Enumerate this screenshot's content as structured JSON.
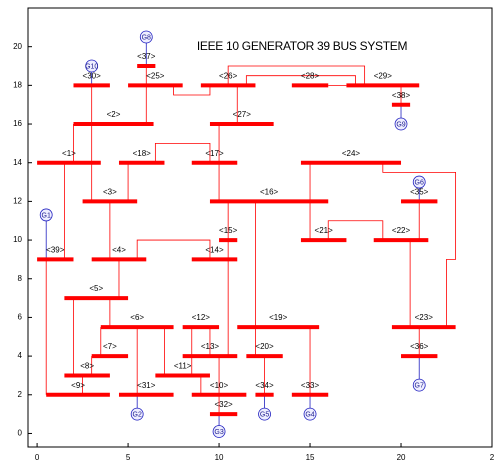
{
  "chart_data": {
    "type": "network",
    "title": "IEEE 10 GENERATOR 39 BUS SYSTEM",
    "xlim": [
      -0.5,
      25
    ],
    "ylim": [
      -0.7,
      22
    ],
    "xticks": [
      0,
      5,
      10,
      15,
      20,
      {
        "value": 25,
        "label": "2"
      }
    ],
    "yticks": [
      0,
      2,
      4,
      6,
      8,
      10,
      12,
      14,
      16,
      18,
      20
    ],
    "bus_color": "#ff0000",
    "line_color": "#ff0000",
    "gen_color": "#2020c0",
    "buses": [
      {
        "name": "<1>",
        "x": [
          0,
          3.5
        ],
        "y": 14
      },
      {
        "name": "<2>",
        "x": [
          2,
          6.4
        ],
        "y": 16
      },
      {
        "name": "<3>",
        "x": [
          2.5,
          5.5
        ],
        "y": 12
      },
      {
        "name": "<4>",
        "x": [
          3,
          6
        ],
        "y": 9
      },
      {
        "name": "<5>",
        "x": [
          1.5,
          5
        ],
        "y": 7
      },
      {
        "name": "<6>",
        "x": [
          3.5,
          7.5
        ],
        "y": 5.5
      },
      {
        "name": "<7>",
        "x": [
          3,
          5
        ],
        "y": 4
      },
      {
        "name": "<8>",
        "x": [
          1.5,
          4
        ],
        "y": 3
      },
      {
        "name": "<9>",
        "x": [
          0.5,
          4
        ],
        "y": 2
      },
      {
        "name": "<10>",
        "x": [
          8.5,
          11.5
        ],
        "y": 2
      },
      {
        "name": "<11>",
        "x": [
          6.5,
          9.5
        ],
        "y": 3
      },
      {
        "name": "<12>",
        "x": [
          8,
          10
        ],
        "y": 5.5
      },
      {
        "name": "<13>",
        "x": [
          8,
          11
        ],
        "y": 4
      },
      {
        "name": "<14>",
        "x": [
          8.5,
          11
        ],
        "y": 9
      },
      {
        "name": "<15>",
        "x": [
          10,
          11
        ],
        "y": 10
      },
      {
        "name": "<16>",
        "x": [
          9.5,
          16
        ],
        "y": 12
      },
      {
        "name": "<17>",
        "x": [
          8.5,
          11
        ],
        "y": 14
      },
      {
        "name": "<18>",
        "x": [
          4.5,
          7
        ],
        "y": 14
      },
      {
        "name": "<19>",
        "x": [
          11,
          15.5
        ],
        "y": 5.5
      },
      {
        "name": "<20>",
        "x": [
          11.5,
          13.5
        ],
        "y": 4
      },
      {
        "name": "<21>",
        "x": [
          14.5,
          17
        ],
        "y": 10
      },
      {
        "name": "<22>",
        "x": [
          18.5,
          21.5
        ],
        "y": 10
      },
      {
        "name": "<23>",
        "x": [
          19.5,
          23
        ],
        "y": 5.5
      },
      {
        "name": "<24>",
        "x": [
          14.5,
          20
        ],
        "y": 14
      },
      {
        "name": "<25>",
        "x": [
          5,
          8
        ],
        "y": 18
      },
      {
        "name": "<26>",
        "x": [
          9,
          12
        ],
        "y": 18
      },
      {
        "name": "<27>",
        "x": [
          9.5,
          13
        ],
        "y": 16
      },
      {
        "name": "<28>",
        "x": [
          14,
          16
        ],
        "y": 18
      },
      {
        "name": "<29>",
        "x": [
          17,
          21
        ],
        "y": 18
      },
      {
        "name": "<30>",
        "x": [
          2,
          4
        ],
        "y": 18
      },
      {
        "name": "<31>",
        "x": [
          4.5,
          7.5
        ],
        "y": 2
      },
      {
        "name": "<32>",
        "x": [
          9.5,
          11
        ],
        "y": 1
      },
      {
        "name": "<33>",
        "x": [
          14,
          16
        ],
        "y": 2
      },
      {
        "name": "<34>",
        "x": [
          12,
          13
        ],
        "y": 2
      },
      {
        "name": "<35>",
        "x": [
          20,
          22
        ],
        "y": 12
      },
      {
        "name": "<36>",
        "x": [
          20,
          22
        ],
        "y": 4
      },
      {
        "name": "<37>",
        "x": [
          5.5,
          6.5
        ],
        "y": 19
      },
      {
        "name": "<38>",
        "x": [
          19.5,
          20.5
        ],
        "y": 17
      },
      {
        "name": "<39>",
        "x": [
          0,
          2
        ],
        "y": 9
      }
    ],
    "generators": [
      {
        "name": "G1",
        "x": 0.5,
        "y": 11.3,
        "to": [
          0.5,
          9
        ]
      },
      {
        "name": "G2",
        "x": 5.5,
        "y": 1,
        "to": [
          5.5,
          2
        ]
      },
      {
        "name": "G3",
        "x": 10,
        "y": 0.1,
        "to": [
          10,
          1
        ]
      },
      {
        "name": "G4",
        "x": 15,
        "y": 1,
        "to": [
          15,
          2
        ]
      },
      {
        "name": "G5",
        "x": 12.5,
        "y": 1,
        "to": [
          12.5,
          2
        ]
      },
      {
        "name": "G6",
        "x": 21,
        "y": 13,
        "to": [
          21,
          12
        ]
      },
      {
        "name": "G7",
        "x": 21,
        "y": 2.5,
        "to": [
          21,
          4
        ]
      },
      {
        "name": "G8",
        "x": 6,
        "y": 20.5,
        "to": [
          6,
          19
        ]
      },
      {
        "name": "G9",
        "x": 20,
        "y": 16,
        "to": [
          20,
          17
        ]
      },
      {
        "name": "G10",
        "x": 3,
        "y": 19,
        "to": [
          3,
          18
        ]
      }
    ],
    "lines": [
      {
        "x": [
          2,
          2
        ],
        "y": [
          14,
          16
        ]
      },
      {
        "x": [
          1.5,
          1.5
        ],
        "y": [
          14,
          9
        ]
      },
      {
        "x": [
          3,
          3
        ],
        "y": [
          16,
          12
        ]
      },
      {
        "x": [
          6,
          6
        ],
        "y": [
          16,
          18
        ]
      },
      {
        "x": [
          3,
          3
        ],
        "y": [
          16,
          18
        ]
      },
      {
        "x": [
          4,
          4
        ],
        "y": [
          12,
          9
        ]
      },
      {
        "x": [
          5,
          5
        ],
        "y": [
          12,
          14
        ]
      },
      {
        "x": [
          4.5,
          4.5
        ],
        "y": [
          9,
          7
        ]
      },
      {
        "x": [
          5.5,
          5.5,
          9.5,
          9.5
        ],
        "y": [
          9,
          10,
          10,
          9
        ]
      },
      {
        "x": [
          4,
          4
        ],
        "y": [
          7,
          5.5
        ]
      },
      {
        "x": [
          2,
          2
        ],
        "y": [
          7,
          3
        ]
      },
      {
        "x": [
          3.5,
          3.5
        ],
        "y": [
          5.5,
          4
        ]
      },
      {
        "x": [
          7,
          7
        ],
        "y": [
          5.5,
          3
        ]
      },
      {
        "x": [
          5.5,
          5.5
        ],
        "y": [
          5.5,
          2
        ]
      },
      {
        "x": [
          3,
          3
        ],
        "y": [
          4,
          3
        ]
      },
      {
        "x": [
          2.5,
          2.5
        ],
        "y": [
          3,
          2
        ]
      },
      {
        "x": [
          0.5,
          0.5
        ],
        "y": [
          9,
          2
        ]
      },
      {
        "x": [
          9,
          9
        ],
        "y": [
          3,
          2
        ]
      },
      {
        "x": [
          10,
          10
        ],
        "y": [
          4,
          1
        ]
      },
      {
        "x": [
          8.5,
          8.5
        ],
        "y": [
          5.5,
          3
        ]
      },
      {
        "x": [
          9.5,
          9.5
        ],
        "y": [
          5.5,
          4
        ]
      },
      {
        "x": [
          10.5,
          10.5
        ],
        "y": [
          4,
          12
        ]
      },
      {
        "x": [
          10,
          10
        ],
        "y": [
          12,
          16
        ]
      },
      {
        "x": [
          12,
          12
        ],
        "y": [
          12,
          5.5
        ]
      },
      {
        "x": [
          15,
          15
        ],
        "y": [
          12,
          10
        ]
      },
      {
        "x": [
          15,
          15
        ],
        "y": [
          12,
          14
        ]
      },
      {
        "x": [
          9.5,
          9.5,
          6.5,
          6.5
        ],
        "y": [
          14,
          15,
          15,
          14
        ]
      },
      {
        "x": [
          12,
          12
        ],
        "y": [
          5.5,
          4
        ]
      },
      {
        "x": [
          15,
          15
        ],
        "y": [
          5.5,
          2
        ]
      },
      {
        "x": [
          12.5,
          12.5
        ],
        "y": [
          4,
          2
        ]
      },
      {
        "x": [
          16,
          16,
          19,
          19
        ],
        "y": [
          10,
          11,
          11,
          10
        ]
      },
      {
        "x": [
          20.5,
          20.5
        ],
        "y": [
          10,
          5.5
        ]
      },
      {
        "x": [
          21,
          21
        ],
        "y": [
          10,
          12
        ]
      },
      {
        "x": [
          22.5,
          22.5,
          23,
          23,
          19,
          19
        ],
        "y": [
          5.5,
          9,
          9,
          13.5,
          13.5,
          14
        ]
      },
      {
        "x": [
          21,
          21
        ],
        "y": [
          5.5,
          4
        ]
      },
      {
        "x": [
          7.5,
          7.5,
          9.5,
          9.5
        ],
        "y": [
          18,
          17.5,
          17.5,
          18
        ]
      },
      {
        "x": [
          6,
          6
        ],
        "y": [
          18,
          19
        ]
      },
      {
        "x": [
          11,
          11
        ],
        "y": [
          18,
          16
        ]
      },
      {
        "x": [
          10.5,
          10.5,
          18,
          18
        ],
        "y": [
          18,
          19,
          19,
          18
        ]
      },
      {
        "x": [
          11.5,
          11.5,
          17.5,
          17.5
        ],
        "y": [
          18,
          18.5,
          18.5,
          18
        ]
      },
      {
        "x": [
          16,
          17
        ],
        "y": [
          18,
          18
        ]
      },
      {
        "x": [
          20,
          20
        ],
        "y": [
          18,
          17
        ]
      }
    ]
  }
}
